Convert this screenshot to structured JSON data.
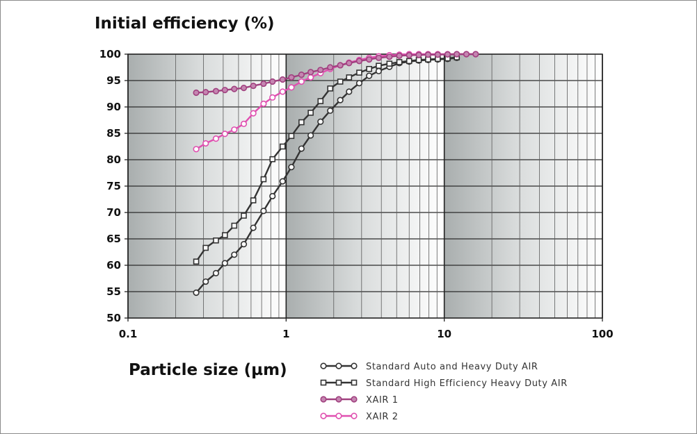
{
  "chart_data": {
    "type": "line",
    "ylabel": "Initial efficiency (%)",
    "xlabel": "Particle size (µm)",
    "x_scale": "log",
    "xlim": [
      0.1,
      100
    ],
    "ylim": [
      50,
      100
    ],
    "x_ticks": [
      {
        "value": 0.1,
        "label": "0.1"
      },
      {
        "value": 1,
        "label": "1"
      },
      {
        "value": 10,
        "label": "10"
      },
      {
        "value": 100,
        "label": "100"
      }
    ],
    "y_ticks": [
      {
        "value": 50,
        "label": "50"
      },
      {
        "value": 55,
        "label": "55"
      },
      {
        "value": 60,
        "label": "60"
      },
      {
        "value": 65,
        "label": "65"
      },
      {
        "value": 70,
        "label": "70"
      },
      {
        "value": 75,
        "label": "75"
      },
      {
        "value": 80,
        "label": "80"
      },
      {
        "value": 85,
        "label": "85"
      },
      {
        "value": 90,
        "label": "90"
      },
      {
        "value": 95,
        "label": "95"
      },
      {
        "value": 100,
        "label": "100"
      }
    ],
    "grid": true,
    "legend_position": "bottom-right",
    "series": [
      {
        "name": "Standard Auto and Heavy Duty AIR",
        "color": "#333333",
        "marker": "circle",
        "points": [
          [
            0.27,
            54.8
          ],
          [
            0.31,
            56.9
          ],
          [
            0.36,
            58.5
          ],
          [
            0.41,
            60.4
          ],
          [
            0.47,
            62.0
          ],
          [
            0.54,
            64.0
          ],
          [
            0.62,
            67.1
          ],
          [
            0.72,
            70.3
          ],
          [
            0.82,
            73.1
          ],
          [
            0.95,
            75.9
          ],
          [
            1.08,
            78.6
          ],
          [
            1.25,
            82.1
          ],
          [
            1.43,
            84.6
          ],
          [
            1.65,
            87.2
          ],
          [
            1.9,
            89.3
          ],
          [
            2.2,
            91.3
          ],
          [
            2.5,
            92.9
          ],
          [
            2.9,
            94.5
          ],
          [
            3.35,
            95.9
          ],
          [
            3.85,
            96.8
          ],
          [
            4.5,
            97.6
          ],
          [
            5.2,
            98.3
          ],
          [
            6.0,
            98.6
          ],
          [
            6.9,
            98.8
          ],
          [
            7.9,
            98.9
          ],
          [
            9.1,
            99.0
          ],
          [
            10.5,
            99.1
          ],
          [
            12.0,
            99.3
          ]
        ]
      },
      {
        "name": "Standard High Efficiency Heavy Duty AIR",
        "color": "#333333",
        "marker": "square",
        "points": [
          [
            0.27,
            60.7
          ],
          [
            0.31,
            63.3
          ],
          [
            0.36,
            64.7
          ],
          [
            0.41,
            65.7
          ],
          [
            0.47,
            67.5
          ],
          [
            0.54,
            69.4
          ],
          [
            0.62,
            72.3
          ],
          [
            0.72,
            76.3
          ],
          [
            0.82,
            80.1
          ],
          [
            0.95,
            82.5
          ],
          [
            1.08,
            84.5
          ],
          [
            1.25,
            87.1
          ],
          [
            1.43,
            88.9
          ],
          [
            1.65,
            91.1
          ],
          [
            1.9,
            93.5
          ],
          [
            2.2,
            94.8
          ],
          [
            2.5,
            95.6
          ],
          [
            2.9,
            96.5
          ],
          [
            3.35,
            97.2
          ],
          [
            3.85,
            97.8
          ],
          [
            4.5,
            98.2
          ],
          [
            5.2,
            98.5
          ],
          [
            6.0,
            98.7
          ],
          [
            6.9,
            98.9
          ],
          [
            7.9,
            99.0
          ],
          [
            9.1,
            99.1
          ],
          [
            10.5,
            99.2
          ],
          [
            12.0,
            99.4
          ]
        ]
      },
      {
        "name": "XAIR 1",
        "color": "#a0407f",
        "marker": "circle-filled",
        "points": [
          [
            0.27,
            92.7
          ],
          [
            0.31,
            92.8
          ],
          [
            0.36,
            93.0
          ],
          [
            0.41,
            93.2
          ],
          [
            0.47,
            93.4
          ],
          [
            0.54,
            93.6
          ],
          [
            0.62,
            94.0
          ],
          [
            0.72,
            94.4
          ],
          [
            0.82,
            94.8
          ],
          [
            0.95,
            95.2
          ],
          [
            1.08,
            95.6
          ],
          [
            1.25,
            96.1
          ],
          [
            1.43,
            96.6
          ],
          [
            1.65,
            97.0
          ],
          [
            1.9,
            97.5
          ],
          [
            2.2,
            97.9
          ],
          [
            2.5,
            98.3
          ],
          [
            2.9,
            98.7
          ],
          [
            3.35,
            99.0
          ],
          [
            3.85,
            99.3
          ],
          [
            4.5,
            99.5
          ],
          [
            5.2,
            99.7
          ],
          [
            6.0,
            99.8
          ],
          [
            6.9,
            99.85
          ],
          [
            7.9,
            99.9
          ],
          [
            9.1,
            99.9
          ],
          [
            10.5,
            99.95
          ],
          [
            12.0,
            100
          ],
          [
            13.8,
            100
          ],
          [
            15.8,
            100
          ]
        ]
      },
      {
        "name": "XAIR 2",
        "color": "#e04fb0",
        "marker": "circle",
        "points": [
          [
            0.27,
            82.0
          ],
          [
            0.31,
            83.1
          ],
          [
            0.36,
            84.0
          ],
          [
            0.41,
            84.9
          ],
          [
            0.47,
            85.7
          ],
          [
            0.54,
            86.8
          ],
          [
            0.62,
            88.8
          ],
          [
            0.72,
            90.6
          ],
          [
            0.82,
            91.8
          ],
          [
            0.95,
            92.9
          ],
          [
            1.08,
            93.7
          ],
          [
            1.25,
            94.8
          ],
          [
            1.43,
            95.6
          ],
          [
            1.65,
            96.4
          ],
          [
            1.9,
            97.2
          ],
          [
            2.2,
            97.9
          ],
          [
            2.5,
            98.4
          ],
          [
            2.9,
            98.9
          ],
          [
            3.35,
            99.3
          ],
          [
            3.85,
            99.6
          ],
          [
            4.5,
            99.8
          ],
          [
            5.2,
            99.9
          ],
          [
            6.0,
            100
          ],
          [
            6.9,
            100
          ],
          [
            7.9,
            100
          ],
          [
            9.1,
            100
          ],
          [
            10.5,
            100
          ],
          [
            12.0,
            100
          ],
          [
            13.8,
            100
          ],
          [
            15.8,
            100
          ]
        ]
      }
    ]
  }
}
